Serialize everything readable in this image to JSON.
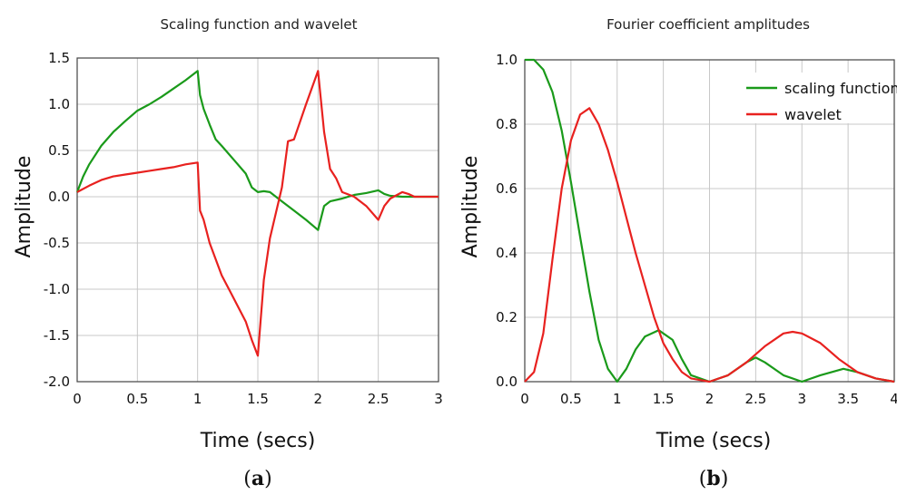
{
  "chart_data": [
    {
      "type": "line",
      "title": "Scaling function and wavelet",
      "xlabel": "Time (secs)",
      "ylabel": "Amplitude",
      "xlim": [
        0,
        3
      ],
      "ylim": [
        -2.0,
        1.5
      ],
      "xticks": [
        "0",
        "0.5",
        "1",
        "1.5",
        "2",
        "2.5",
        "3"
      ],
      "yticks": [
        "1.5",
        "1.0",
        "0.5",
        "0.0",
        "-0.5",
        "-1.0",
        "-1.5",
        "-2.0"
      ],
      "grid": true,
      "caption": {
        "open": "(",
        "letter": "a",
        "close": ")"
      },
      "series": [
        {
          "color": "#1a9a1a",
          "x": [
            0,
            0.05,
            0.1,
            0.2,
            0.3,
            0.4,
            0.5,
            0.6,
            0.7,
            0.8,
            0.9,
            1.0,
            1.02,
            1.05,
            1.1,
            1.15,
            1.2,
            1.3,
            1.4,
            1.45,
            1.5,
            1.55,
            1.6,
            1.7,
            1.8,
            1.9,
            2.0,
            2.05,
            2.1,
            2.2,
            2.3,
            2.4,
            2.5,
            2.55,
            2.6,
            2.7,
            2.8,
            3.0
          ],
          "y": [
            0.05,
            0.22,
            0.35,
            0.55,
            0.7,
            0.82,
            0.93,
            1.0,
            1.08,
            1.17,
            1.26,
            1.36,
            1.1,
            0.95,
            0.78,
            0.62,
            0.55,
            0.4,
            0.25,
            0.1,
            0.05,
            0.06,
            0.05,
            -0.05,
            -0.15,
            -0.25,
            -0.36,
            -0.1,
            -0.05,
            -0.02,
            0.02,
            0.04,
            0.07,
            0.03,
            0.01,
            0.0,
            0.0,
            0.0
          ]
        },
        {
          "color": "#e8211f",
          "x": [
            0,
            0.1,
            0.2,
            0.3,
            0.4,
            0.5,
            0.6,
            0.7,
            0.8,
            0.9,
            1.0,
            1.02,
            1.05,
            1.1,
            1.2,
            1.3,
            1.4,
            1.45,
            1.5,
            1.55,
            1.6,
            1.7,
            1.75,
            1.8,
            1.9,
            2.0,
            2.05,
            2.1,
            2.15,
            2.2,
            2.3,
            2.4,
            2.5,
            2.55,
            2.6,
            2.7,
            2.75,
            2.8,
            3.0
          ],
          "y": [
            0.05,
            0.12,
            0.18,
            0.22,
            0.24,
            0.26,
            0.28,
            0.3,
            0.32,
            0.35,
            0.37,
            -0.15,
            -0.25,
            -0.5,
            -0.85,
            -1.1,
            -1.35,
            -1.55,
            -1.72,
            -0.9,
            -0.45,
            0.1,
            0.6,
            0.62,
            1.0,
            1.36,
            0.7,
            0.3,
            0.2,
            0.05,
            0.0,
            -0.1,
            -0.25,
            -0.1,
            -0.02,
            0.05,
            0.03,
            0.0,
            0.0
          ]
        }
      ]
    },
    {
      "type": "line",
      "title": "Fourier coefficient amplitudes",
      "xlabel": "Time (secs)",
      "ylabel": "Amplitude",
      "xlim": [
        0,
        4
      ],
      "ylim": [
        0,
        1.0
      ],
      "xticks": [
        "0",
        "0.5",
        "1",
        "1.5",
        "2",
        "2.5",
        "3",
        "3.5",
        "4"
      ],
      "yticks": [
        "1.0",
        "0.8",
        "0.6",
        "0.4",
        "0.2",
        "0.0"
      ],
      "grid": true,
      "legend_position": "top-right",
      "caption": {
        "open": "(",
        "letter": "b",
        "close": ")"
      },
      "series": [
        {
          "name": "scaling function",
          "color": "#1a9a1a",
          "x": [
            0,
            0.1,
            0.2,
            0.3,
            0.4,
            0.5,
            0.6,
            0.7,
            0.8,
            0.9,
            1.0,
            1.1,
            1.2,
            1.3,
            1.45,
            1.6,
            1.7,
            1.8,
            2.0,
            2.2,
            2.4,
            2.5,
            2.6,
            2.8,
            3.0,
            3.2,
            3.45,
            3.6,
            3.8,
            4.0
          ],
          "y": [
            1.0,
            1.0,
            0.97,
            0.9,
            0.78,
            0.62,
            0.45,
            0.28,
            0.13,
            0.04,
            0.0,
            0.04,
            0.1,
            0.14,
            0.16,
            0.13,
            0.07,
            0.02,
            0.0,
            0.02,
            0.06,
            0.075,
            0.06,
            0.02,
            0.0,
            0.02,
            0.04,
            0.03,
            0.01,
            0.0
          ]
        },
        {
          "name": "wavelet",
          "color": "#e8211f",
          "x": [
            0,
            0.1,
            0.2,
            0.3,
            0.4,
            0.5,
            0.6,
            0.7,
            0.8,
            0.9,
            1.0,
            1.1,
            1.2,
            1.3,
            1.4,
            1.5,
            1.6,
            1.7,
            1.8,
            2.0,
            2.2,
            2.4,
            2.6,
            2.8,
            2.9,
            3.0,
            3.2,
            3.4,
            3.6,
            3.8,
            4.0
          ],
          "y": [
            0.0,
            0.03,
            0.15,
            0.38,
            0.6,
            0.75,
            0.83,
            0.85,
            0.8,
            0.72,
            0.62,
            0.51,
            0.4,
            0.3,
            0.2,
            0.12,
            0.07,
            0.03,
            0.01,
            0.0,
            0.02,
            0.06,
            0.11,
            0.15,
            0.155,
            0.15,
            0.12,
            0.07,
            0.03,
            0.01,
            0.0
          ]
        }
      ]
    }
  ]
}
